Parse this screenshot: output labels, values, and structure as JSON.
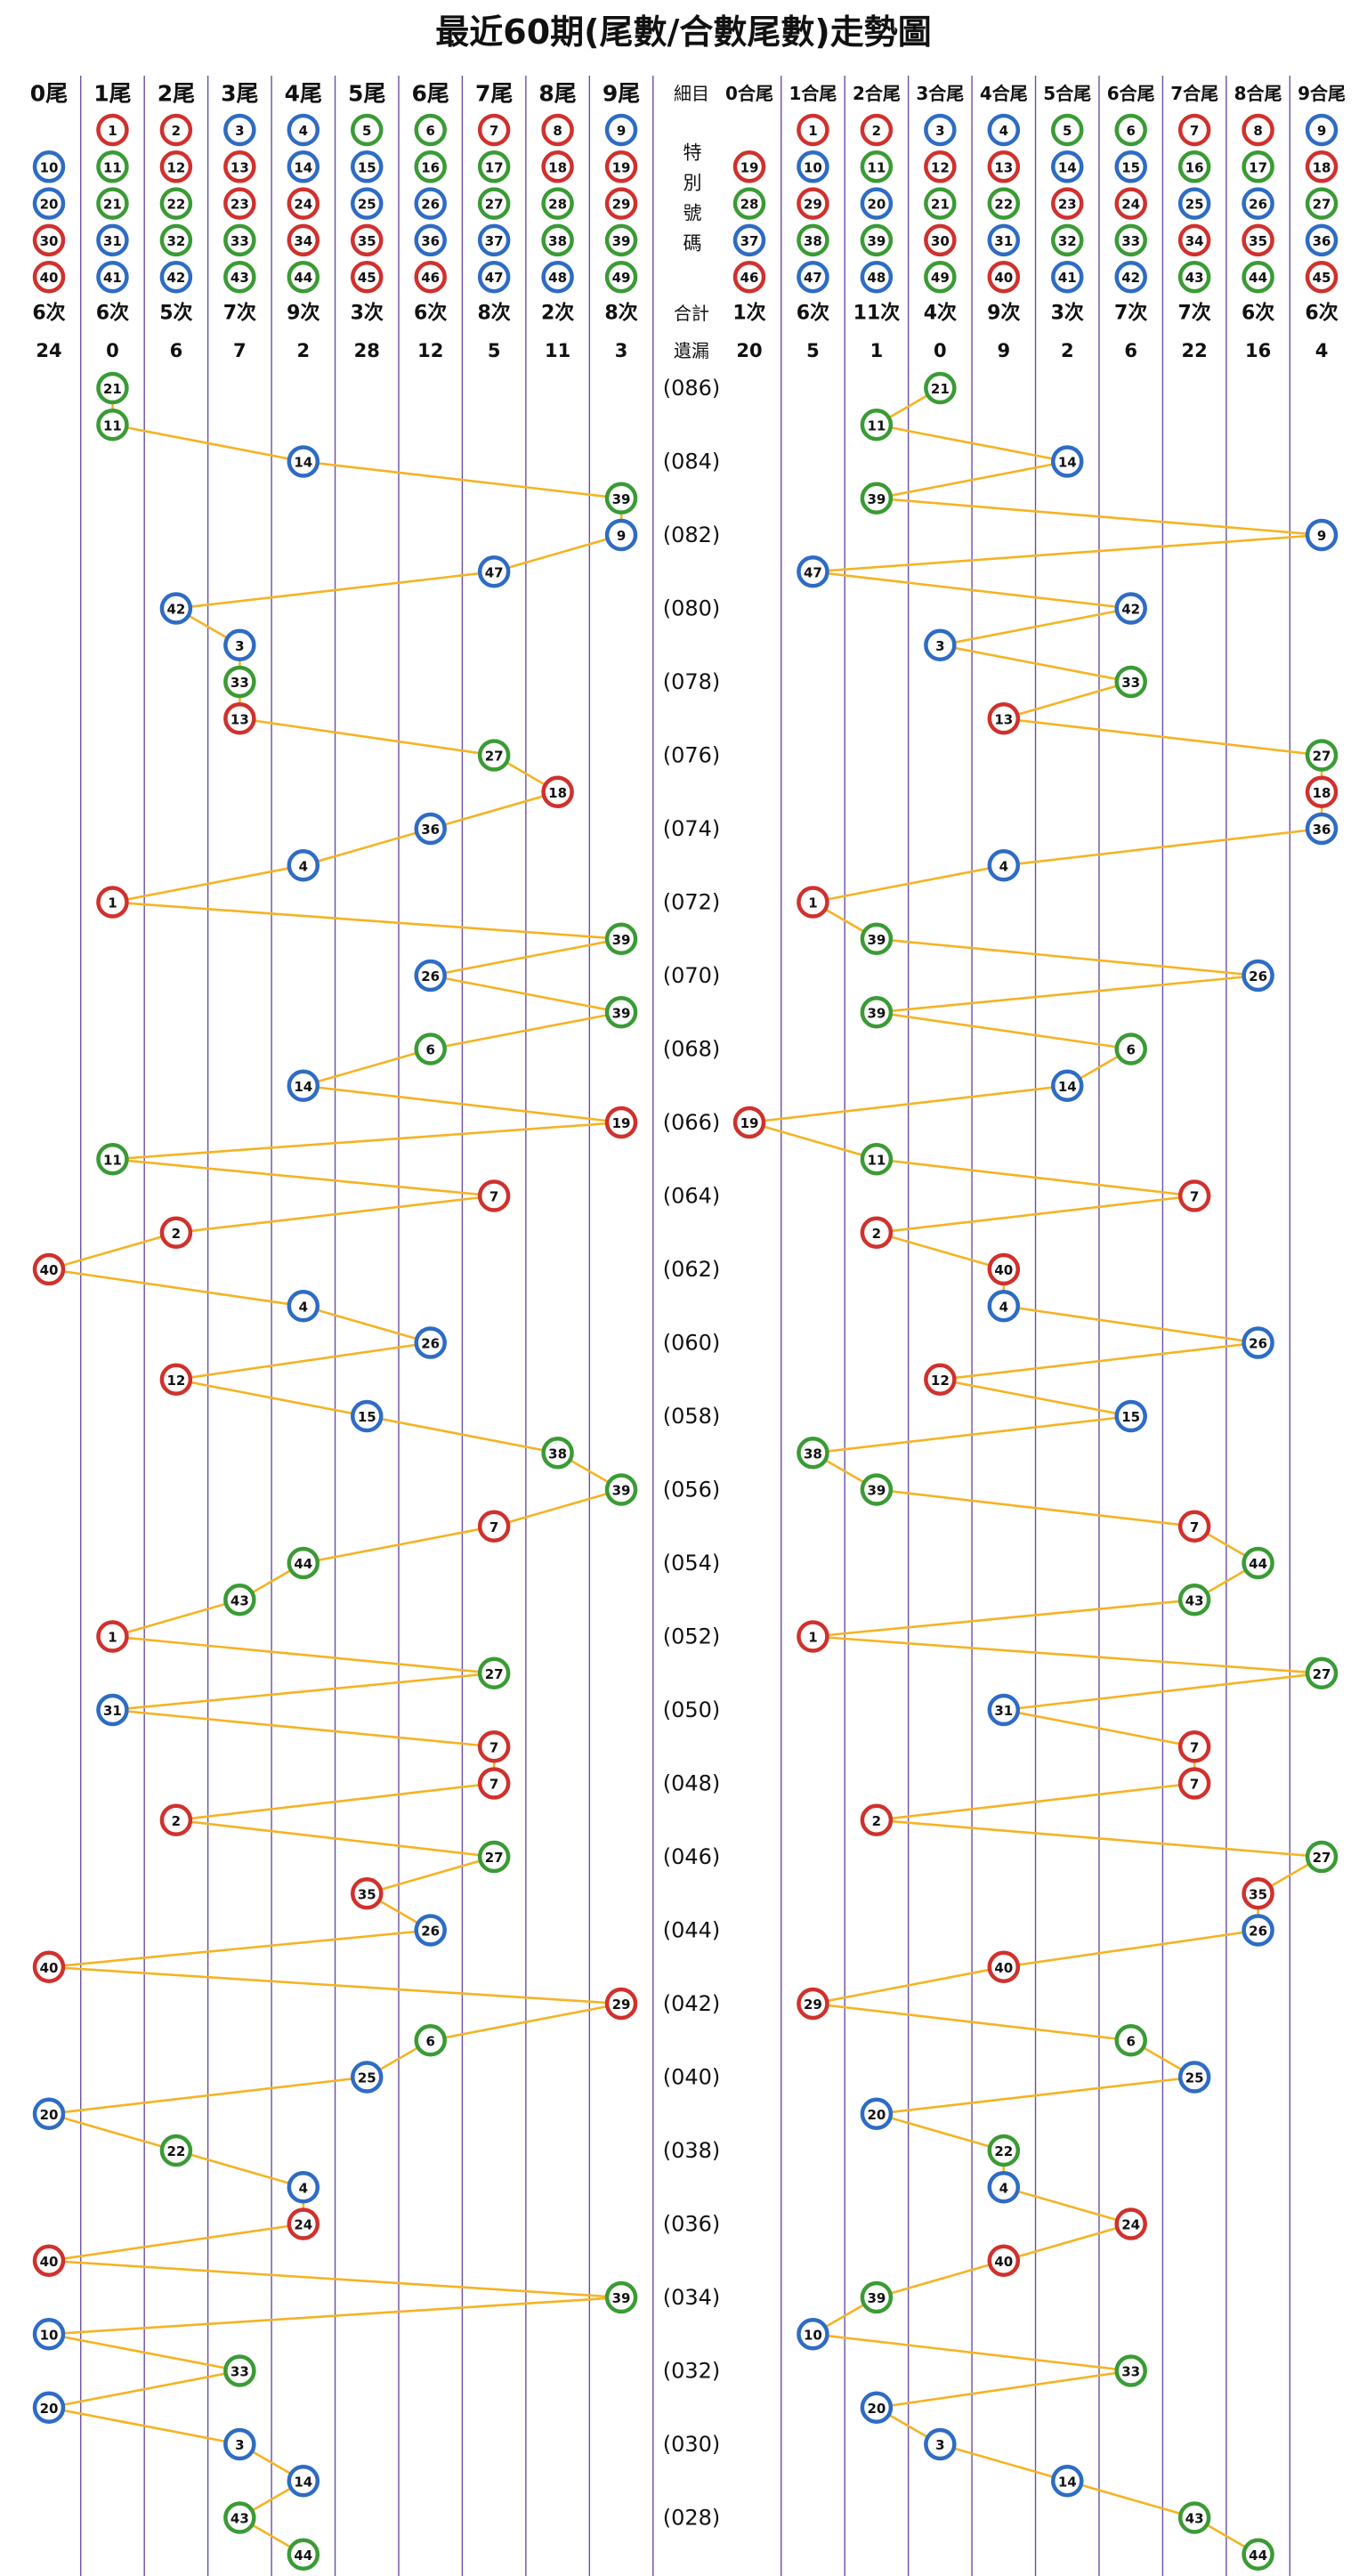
{
  "title": "最近60期(尾數/合數尾數)走勢圖",
  "detail_label": "細目",
  "special_label": "特別號碼",
  "total_label": "合計",
  "missing_label": "遺漏",
  "tail_groups": [
    {
      "label": "0尾",
      "numbers": [
        10,
        20,
        30,
        40
      ],
      "count": "6次",
      "missing": 24
    },
    {
      "label": "1尾",
      "numbers": [
        1,
        11,
        21,
        31,
        41
      ],
      "count": "6次",
      "missing": 0
    },
    {
      "label": "2尾",
      "numbers": [
        2,
        12,
        22,
        32,
        42
      ],
      "count": "5次",
      "missing": 6
    },
    {
      "label": "3尾",
      "numbers": [
        3,
        13,
        23,
        33,
        43
      ],
      "count": "7次",
      "missing": 7
    },
    {
      "label": "4尾",
      "numbers": [
        4,
        14,
        24,
        34,
        44
      ],
      "count": "9次",
      "missing": 2
    },
    {
      "label": "5尾",
      "numbers": [
        5,
        15,
        25,
        35,
        45
      ],
      "count": "3次",
      "missing": 28
    },
    {
      "label": "6尾",
      "numbers": [
        6,
        16,
        26,
        36,
        46
      ],
      "count": "6次",
      "missing": 12
    },
    {
      "label": "7尾",
      "numbers": [
        7,
        17,
        27,
        37,
        47
      ],
      "count": "8次",
      "missing": 5
    },
    {
      "label": "8尾",
      "numbers": [
        8,
        18,
        28,
        38,
        48
      ],
      "count": "2次",
      "missing": 11
    },
    {
      "label": "9尾",
      "numbers": [
        9,
        19,
        29,
        39,
        49
      ],
      "count": "8次",
      "missing": 3
    }
  ],
  "sum_tail_groups": [
    {
      "label": "0合尾",
      "numbers": [
        19,
        28,
        37,
        46
      ],
      "count": "1次",
      "missing": 20
    },
    {
      "label": "1合尾",
      "numbers": [
        1,
        10,
        29,
        38,
        47
      ],
      "count": "6次",
      "missing": 5
    },
    {
      "label": "2合尾",
      "numbers": [
        2,
        11,
        20,
        39,
        48
      ],
      "count": "11次",
      "missing": 1
    },
    {
      "label": "3合尾",
      "numbers": [
        3,
        12,
        21,
        30,
        49
      ],
      "count": "4次",
      "missing": 0
    },
    {
      "label": "4合尾",
      "numbers": [
        4,
        13,
        22,
        31,
        40
      ],
      "count": "9次",
      "missing": 9
    },
    {
      "label": "5合尾",
      "numbers": [
        5,
        14,
        23,
        32,
        41
      ],
      "count": "3次",
      "missing": 2
    },
    {
      "label": "6合尾",
      "numbers": [
        6,
        15,
        24,
        33,
        42
      ],
      "count": "7次",
      "missing": 6
    },
    {
      "label": "7合尾",
      "numbers": [
        7,
        16,
        25,
        34,
        43
      ],
      "count": "7次",
      "missing": 22
    },
    {
      "label": "8合尾",
      "numbers": [
        8,
        17,
        26,
        35,
        44
      ],
      "count": "6次",
      "missing": 16
    },
    {
      "label": "9合尾",
      "numbers": [
        9,
        18,
        27,
        36,
        45
      ],
      "count": "6次",
      "missing": 4
    }
  ],
  "periods": [
    "(086)",
    null,
    "(084)",
    null,
    "(082)",
    null,
    "(080)",
    null,
    "(078)",
    null,
    "(076)",
    null,
    "(074)",
    null,
    "(072)",
    null,
    "(070)",
    null,
    "(068)",
    null,
    "(066)",
    null,
    "(064)",
    null,
    "(062)",
    null,
    "(060)",
    null,
    "(058)",
    null,
    "(056)",
    null,
    "(054)",
    null,
    "(052)",
    null,
    "(050)",
    null,
    "(048)",
    null,
    "(046)",
    null,
    "(044)",
    null,
    "(042)",
    null,
    "(040)",
    null,
    "(038)",
    null,
    "(036)",
    null,
    "(034)",
    null,
    "(032)",
    null,
    "(030)",
    null,
    "(028)",
    null
  ],
  "values": [
    21,
    11,
    14,
    39,
    9,
    47,
    42,
    3,
    33,
    13,
    27,
    18,
    36,
    4,
    1,
    39,
    26,
    39,
    6,
    14,
    19,
    11,
    7,
    2,
    40,
    4,
    26,
    12,
    15,
    38,
    39,
    7,
    44,
    43,
    1,
    27,
    31,
    7,
    7,
    2,
    27,
    35,
    26,
    40,
    29,
    6,
    25,
    20,
    22,
    4,
    24,
    40,
    39,
    10,
    33,
    20,
    3,
    14,
    43,
    44
  ],
  "ball_colors": [
    {
      "color": "#d0312d",
      "numbers": [
        1,
        2,
        7,
        8,
        12,
        13,
        18,
        19,
        23,
        24,
        29,
        30,
        34,
        35,
        40,
        45,
        46
      ]
    },
    {
      "color": "#2e6cc4",
      "numbers": [
        3,
        4,
        9,
        10,
        14,
        15,
        20,
        25,
        26,
        31,
        36,
        37,
        41,
        42,
        47,
        48
      ]
    },
    {
      "color": "#3a9b35",
      "numbers": [
        5,
        6,
        11,
        16,
        17,
        21,
        22,
        27,
        28,
        32,
        33,
        38,
        39,
        43,
        44,
        49
      ]
    }
  ],
  "line_color": "#f5b323",
  "grid_color": "#6a4fa3"
}
